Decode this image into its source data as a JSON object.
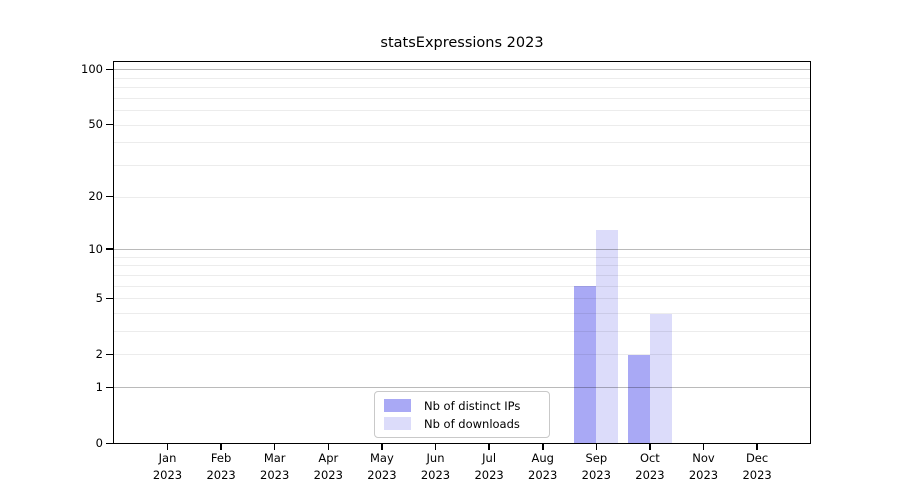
{
  "chart_data": {
    "type": "bar",
    "title": "statsExpressions 2023",
    "categories": [
      "Jan",
      "Feb",
      "Mar",
      "Apr",
      "May",
      "Jun",
      "Jul",
      "Aug",
      "Sep",
      "Oct",
      "Nov",
      "Dec"
    ],
    "year_label": "2023",
    "series": [
      {
        "name": "Nb of distinct IPs",
        "color": "#a9a9f5",
        "values": [
          0,
          0,
          0,
          0,
          0,
          0,
          0,
          0,
          6,
          2,
          0,
          0
        ]
      },
      {
        "name": "Nb of downloads",
        "color": "#dcdcfa",
        "values": [
          0,
          0,
          0,
          0,
          0,
          0,
          0,
          0,
          13,
          4,
          0,
          0
        ]
      }
    ],
    "xlabel": "",
    "ylabel": "",
    "yscale": "log1p",
    "ylim": [
      0,
      111
    ],
    "y_ticks": [
      0,
      1,
      2,
      5,
      10,
      20,
      50,
      100
    ],
    "grid": {
      "major": [
        1,
        10,
        100
      ],
      "minor": [
        2,
        3,
        4,
        5,
        6,
        7,
        8,
        9,
        20,
        30,
        40,
        50,
        60,
        70,
        80,
        90
      ],
      "major_color": "#bcbcbc",
      "minor_color": "#e9e9e9",
      "drawn_over_bars": true
    },
    "legend_position": "lower center inside plot"
  },
  "colors": {
    "background": "#ffffff",
    "text": "#000000",
    "axis": "#000000",
    "legend_border": "#c9c9c9"
  }
}
